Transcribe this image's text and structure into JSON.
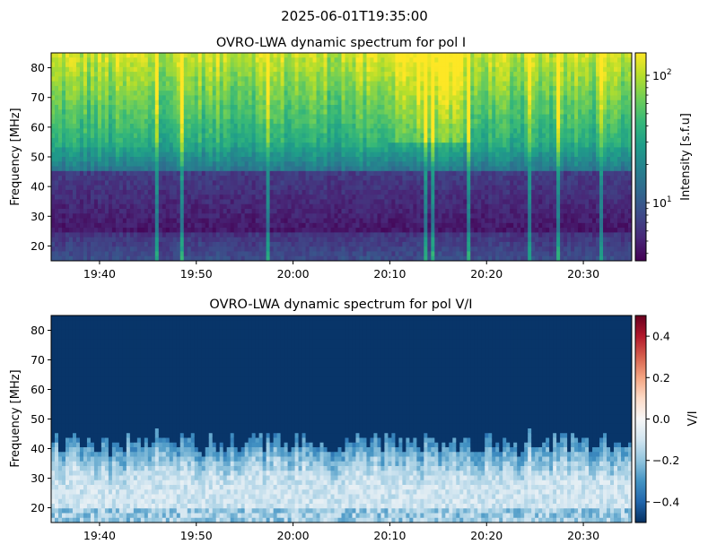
{
  "suptitle": "2025-06-01T19:35:00",
  "colors": {
    "viridis": [
      "#440154",
      "#482878",
      "#3e4a89",
      "#31688e",
      "#26828e",
      "#1f9e89",
      "#35b779",
      "#6ece58",
      "#b5de2b",
      "#fde725"
    ],
    "rdbu_r": [
      "#053061",
      "#2166ac",
      "#4393c3",
      "#92c5de",
      "#d1e5f0",
      "#f7f7f7",
      "#fddbc7",
      "#f4a582",
      "#d6604d",
      "#b2182b",
      "#67001f"
    ]
  },
  "chart_data": [
    {
      "type": "heatmap",
      "title": "OVRO-LWA dynamic spectrum for pol I",
      "xlabel": "",
      "ylabel": "Frequency [MHz]",
      "x_range": [
        "19:35",
        "20:35"
      ],
      "xticks": [
        "19:40",
        "19:50",
        "20:00",
        "20:10",
        "20:20",
        "20:30"
      ],
      "ylim": [
        15,
        85
      ],
      "yticks": [
        20,
        30,
        40,
        50,
        60,
        70,
        80
      ],
      "colorbar": {
        "label": "Intensity [s.f.u]",
        "scale": "log",
        "range": [
          3.5,
          150
        ],
        "ticks": [
          {
            "value": 10,
            "base": "10",
            "exp": "1"
          },
          {
            "value": 100,
            "base": "10",
            "exp": "2"
          }
        ],
        "colormap": "viridis"
      }
    },
    {
      "type": "heatmap",
      "title": "OVRO-LWA dynamic spectrum for pol V/I",
      "xlabel": "",
      "ylabel": "Frequency [MHz]",
      "x_range": [
        "19:35",
        "20:35"
      ],
      "xticks": [
        "19:40",
        "19:50",
        "20:00",
        "20:10",
        "20:20",
        "20:30"
      ],
      "ylim": [
        15,
        85
      ],
      "yticks": [
        20,
        30,
        40,
        50,
        60,
        70,
        80
      ],
      "colorbar": {
        "label": "V/I",
        "scale": "linear",
        "range": [
          -0.5,
          0.5
        ],
        "ticks": [
          "−0.4",
          "−0.2",
          "0.0",
          "0.2",
          "0.4"
        ],
        "tick_values": [
          -0.4,
          -0.2,
          0.0,
          0.2,
          0.4
        ],
        "colormap": "RdBu_r"
      }
    }
  ]
}
